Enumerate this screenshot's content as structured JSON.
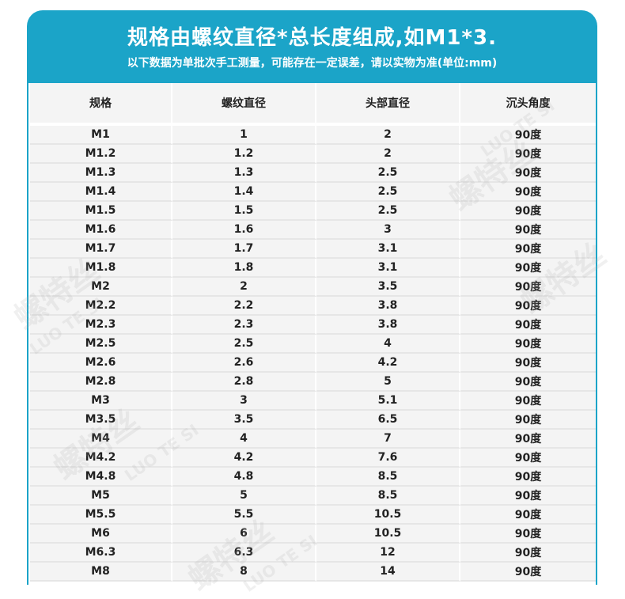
{
  "header": {
    "title": "规格由螺纹直径*总长度组成,如M1*3.",
    "subtitle": "以下数据为单批次手工测量，可能存在一定误差，请以实物为准(单位:mm)"
  },
  "table": {
    "columns": [
      "规格",
      "螺纹直径",
      "头部直径",
      "沉头角度"
    ],
    "rows": [
      [
        "M1",
        "1",
        "2",
        "90度"
      ],
      [
        "M1.2",
        "1.2",
        "2",
        "90度"
      ],
      [
        "M1.3",
        "1.3",
        "2.5",
        "90度"
      ],
      [
        "M1.4",
        "1.4",
        "2.5",
        "90度"
      ],
      [
        "M1.5",
        "1.5",
        "2.5",
        "90度"
      ],
      [
        "M1.6",
        "1.6",
        "3",
        "90度"
      ],
      [
        "M1.7",
        "1.7",
        "3.1",
        "90度"
      ],
      [
        "M1.8",
        "1.8",
        "3.1",
        "90度"
      ],
      [
        "M2",
        "2",
        "3.5",
        "90度"
      ],
      [
        "M2.2",
        "2.2",
        "3.8",
        "90度"
      ],
      [
        "M2.3",
        "2.3",
        "3.8",
        "90度"
      ],
      [
        "M2.5",
        "2.5",
        "4",
        "90度"
      ],
      [
        "M2.6",
        "2.6",
        "4.2",
        "90度"
      ],
      [
        "M2.8",
        "2.8",
        "5",
        "90度"
      ],
      [
        "M3",
        "3",
        "5.1",
        "90度"
      ],
      [
        "M3.5",
        "3.5",
        "6.5",
        "90度"
      ],
      [
        "M4",
        "4",
        "7",
        "90度"
      ],
      [
        "M4.2",
        "4.2",
        "7.6",
        "90度"
      ],
      [
        "M4.8",
        "4.8",
        "8.5",
        "90度"
      ],
      [
        "M5",
        "5",
        "8.5",
        "90度"
      ],
      [
        "M5.5",
        "5.5",
        "10.5",
        "90度"
      ],
      [
        "M6",
        "6",
        "10.5",
        "90度"
      ],
      [
        "M6.3",
        "6.3",
        "12",
        "90度"
      ],
      [
        "M8",
        "8",
        "14",
        "90度"
      ]
    ]
  },
  "watermark": {
    "brand": "螺特丝",
    "latin": "LUO TE SI"
  },
  "colors": {
    "accent": "#1ba4c8",
    "row_bg": "#f4f4f4"
  }
}
